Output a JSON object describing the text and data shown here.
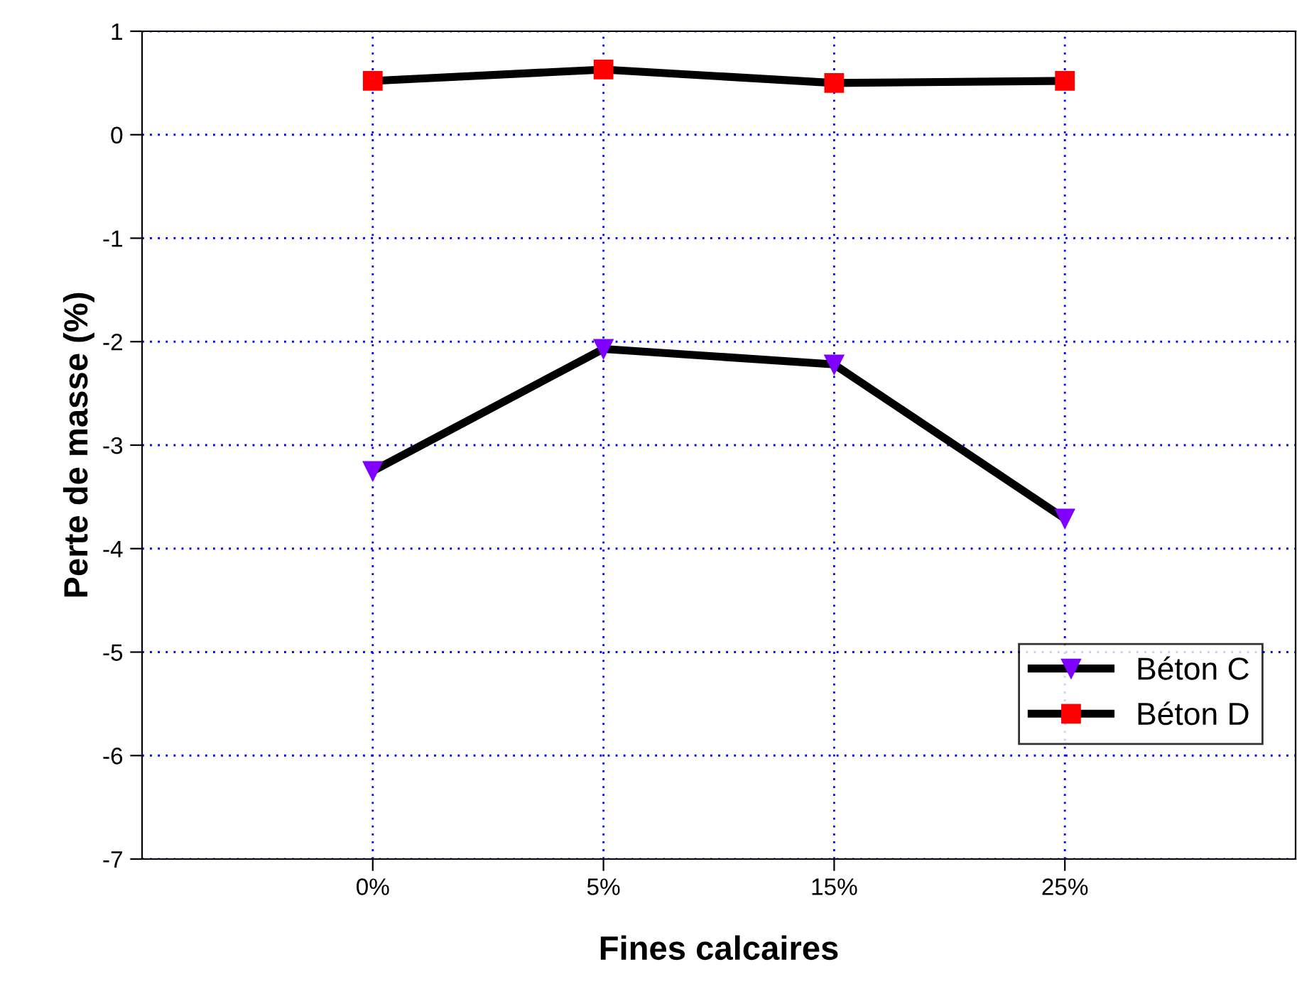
{
  "chart_data": {
    "type": "line",
    "xlabel": "Fines calcaires",
    "ylabel": "Perte de masse (%)",
    "categories": [
      "0%",
      "5%",
      "15%",
      "25%"
    ],
    "series": [
      {
        "name": "Béton C",
        "color": "#8000ff",
        "marker": "triangle",
        "values": [
          -3.25,
          -2.07,
          -2.22,
          -3.71
        ]
      },
      {
        "name": "Béton D",
        "color": "#ff0000",
        "marker": "square",
        "values": [
          0.52,
          0.63,
          0.5,
          0.52
        ]
      }
    ],
    "ylim": [
      -7,
      1
    ],
    "yticks": [
      -7,
      -6,
      -5,
      -4,
      -3,
      -2,
      -1,
      0,
      1
    ],
    "grid": true,
    "legend": "bottom right",
    "line_style": "solid"
  }
}
